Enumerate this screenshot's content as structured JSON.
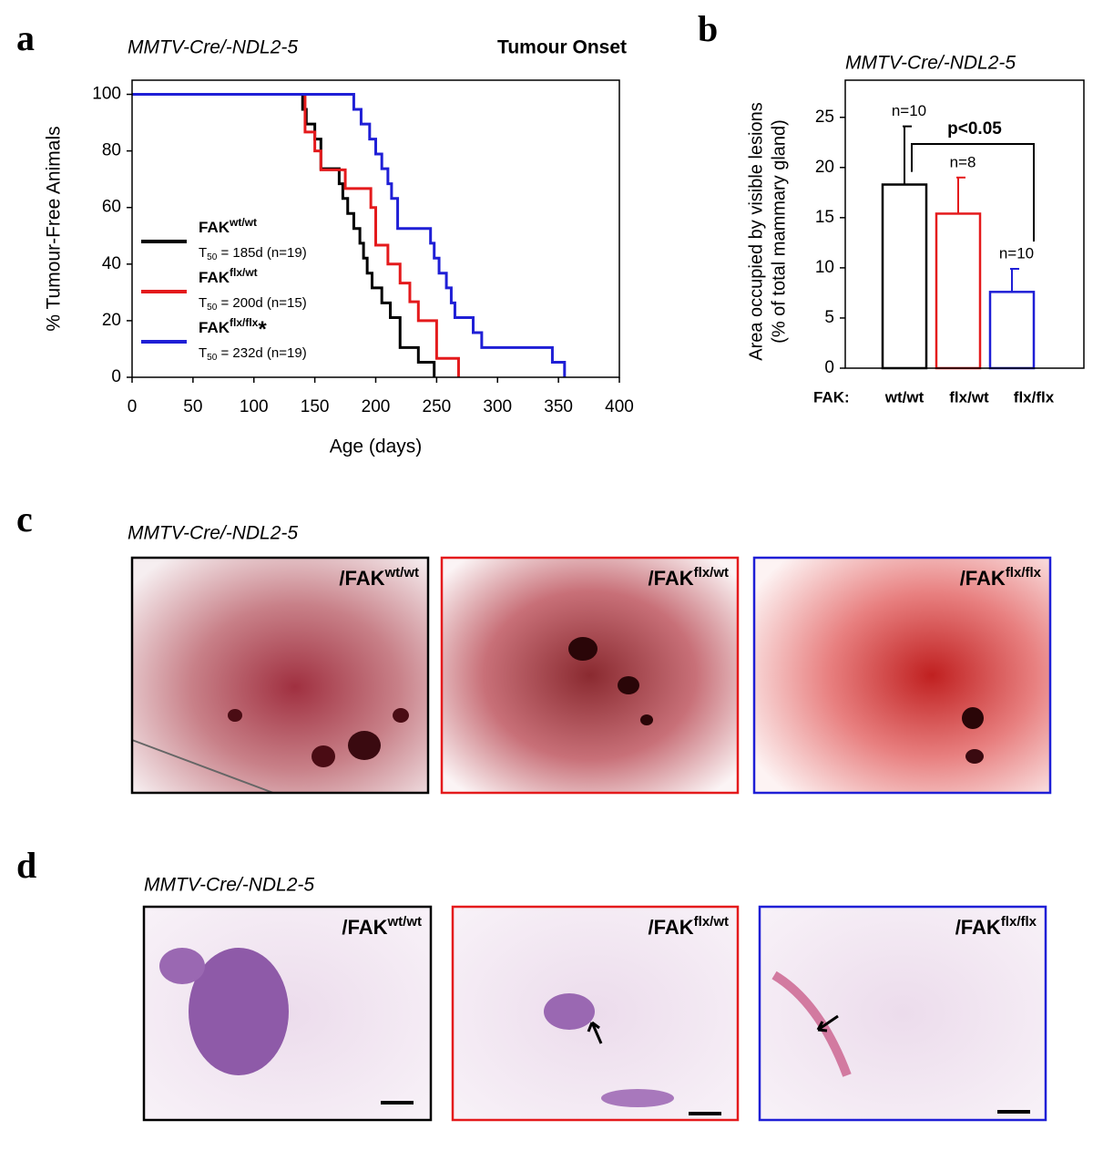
{
  "panel_letters": [
    "a",
    "b",
    "c",
    "d"
  ],
  "chart_data": [
    {
      "type": "step",
      "title": "MMTV-Cre/-NDL2-5",
      "subtitle": "Tumour Onset",
      "xlabel": "Age (days)",
      "ylabel": "% Tumour-Free Animals",
      "xlim": [
        0,
        400
      ],
      "xticks": [
        0,
        50,
        100,
        150,
        200,
        250,
        300,
        350,
        400
      ],
      "ylim": [
        0,
        105
      ],
      "yticks": [
        0,
        20,
        40,
        60,
        80,
        100
      ],
      "stat_symbol": "T",
      "stat_subscript": "50",
      "series": [
        {
          "name": "FAK",
          "name_sup": "wt/wt",
          "stat": " = 185d (n=19)",
          "color": "#000000",
          "x": [
            0,
            140,
            143,
            150,
            155,
            170,
            173,
            177,
            182,
            187,
            190,
            193,
            197,
            205,
            212,
            220,
            235,
            248
          ],
          "values": [
            100,
            94.7,
            89.5,
            84.2,
            73.7,
            68.4,
            63.2,
            57.9,
            52.6,
            47.4,
            42.1,
            36.8,
            31.6,
            26.3,
            21.1,
            10.5,
            5.3,
            0
          ]
        },
        {
          "name": "FAK",
          "name_sup": "flx/wt",
          "stat": " = 200d (n=15)",
          "color": "#e41a1c",
          "x": [
            0,
            142,
            150,
            155,
            175,
            196,
            200,
            210,
            220,
            228,
            235,
            250,
            268
          ],
          "values": [
            100,
            86.7,
            80,
            73.3,
            66.7,
            60,
            46.7,
            40,
            33.3,
            26.7,
            20,
            6.7,
            0
          ]
        },
        {
          "name": "FAK",
          "name_sup": "flx/flx",
          "marker": "*",
          "stat": " = 232d (n=19)",
          "color": "#1f1fd6",
          "x": [
            0,
            182,
            188,
            195,
            200,
            205,
            210,
            213,
            218,
            245,
            248,
            252,
            258,
            262,
            265,
            280,
            287,
            345,
            355
          ],
          "values": [
            100,
            94.7,
            89.5,
            84.2,
            78.9,
            73.7,
            68.4,
            63.2,
            52.6,
            47.4,
            42.1,
            36.8,
            31.6,
            26.3,
            21.1,
            15.8,
            10.5,
            5.3,
            0
          ]
        }
      ]
    },
    {
      "type": "bar",
      "title": "MMTV-Cre/-NDL2-5",
      "ylabel": [
        "Area occupied by visible lesions",
        "(% of total mammary gland)"
      ],
      "xlabel": "FAK:",
      "categories": [
        "wt/wt",
        "flx/wt",
        "flx/flx"
      ],
      "values": [
        18.3,
        15.4,
        7.6
      ],
      "errors": [
        5.8,
        3.6,
        2.3
      ],
      "n_labels": [
        "n=10",
        "n=8",
        "n=10"
      ],
      "colors": [
        "#000000",
        "#e41a1c",
        "#1f1fd6"
      ],
      "annotation": "p<0.05",
      "ylim": [
        0,
        28.7
      ],
      "yticks": [
        0,
        5,
        10,
        15,
        20,
        25
      ]
    }
  ],
  "images": {
    "c": {
      "title": "MMTV-Cre/-NDL2-5",
      "items": [
        {
          "label": "/FAK",
          "sup": "wt/wt"
        },
        {
          "label": "/FAK",
          "sup": "flx/wt"
        },
        {
          "label": "/FAK",
          "sup": "flx/flx"
        }
      ]
    },
    "d": {
      "title": "MMTV-Cre/-NDL2-5",
      "items": [
        {
          "label": "/FAK",
          "sup": "wt/wt"
        },
        {
          "label": "/FAK",
          "sup": "flx/wt"
        },
        {
          "label": "/FAK",
          "sup": "flx/flx"
        }
      ]
    }
  }
}
